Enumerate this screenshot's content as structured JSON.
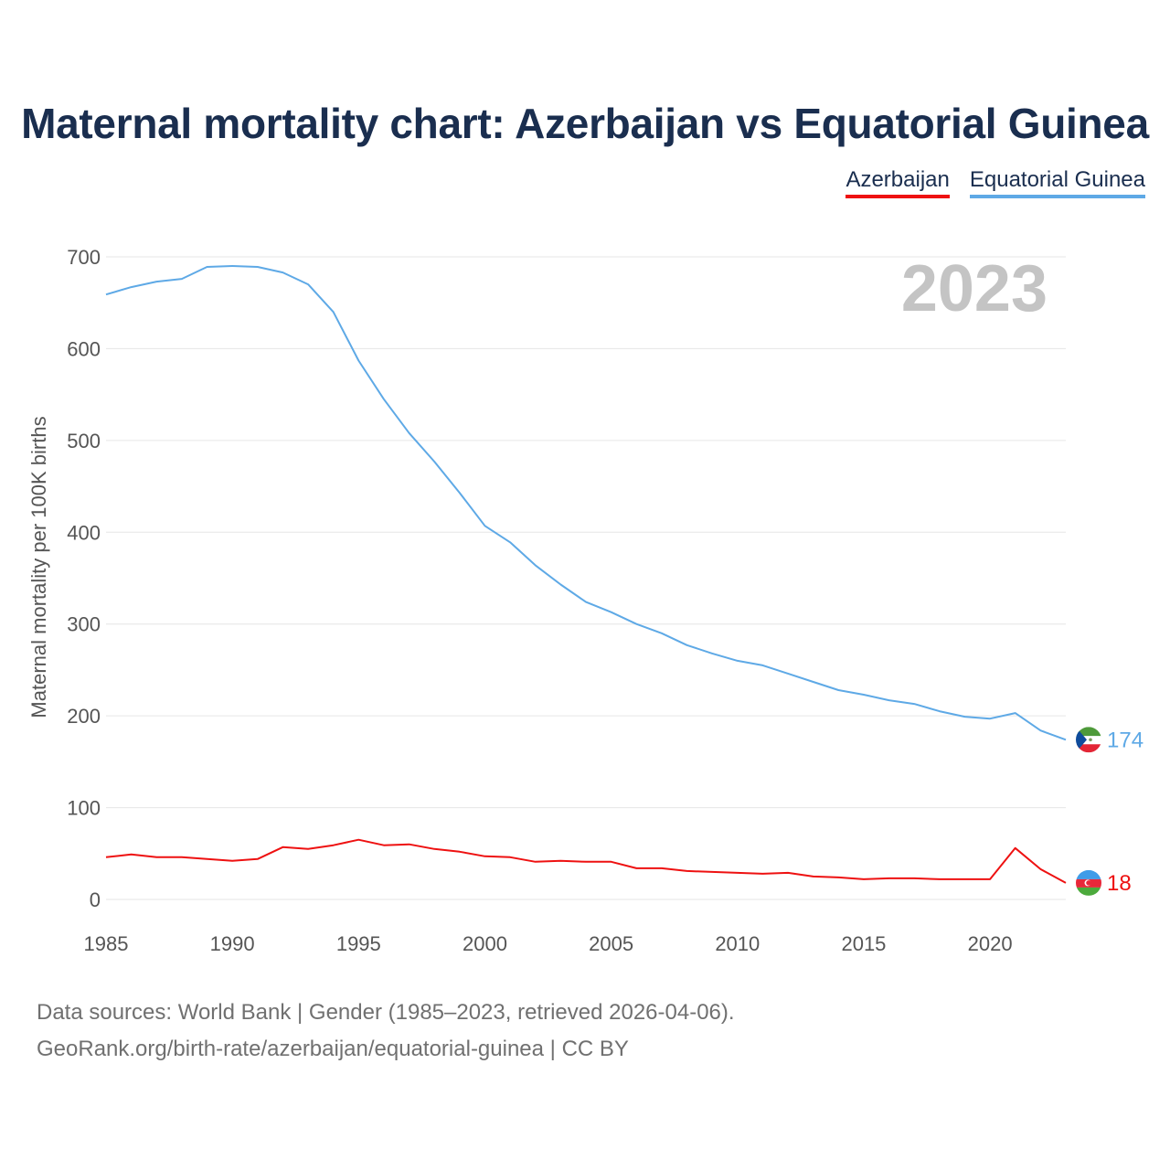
{
  "title": "Maternal mortality chart: Azerbaijan vs Equatorial Guinea",
  "legend": [
    {
      "name": "Azerbaijan",
      "color": "#ee1111"
    },
    {
      "name": "Equatorial Guinea",
      "color": "#5ea9e6"
    }
  ],
  "year_watermark": "2023",
  "source": {
    "line1": "Data sources: World Bank | Gender (1985–2023, retrieved 2026-04-06).",
    "line2": "GeoRank.org/birth-rate/azerbaijan/equatorial-guinea | CC BY"
  },
  "chart_data": {
    "type": "line",
    "title": "Maternal mortality chart: Azerbaijan vs Equatorial Guinea",
    "xlabel": "",
    "ylabel": "Maternal mortality per 100K births",
    "xlim": [
      1985,
      2023
    ],
    "ylim": [
      0,
      700
    ],
    "x_ticks": [
      "1985",
      "1990",
      "1995",
      "2000",
      "2005",
      "2010",
      "2015",
      "2020"
    ],
    "y_ticks": [
      "0",
      "100",
      "200",
      "300",
      "400",
      "500",
      "600",
      "700"
    ],
    "grid": true,
    "x": [
      1985,
      1986,
      1987,
      1988,
      1989,
      1990,
      1991,
      1992,
      1993,
      1994,
      1995,
      1996,
      1997,
      1998,
      1999,
      2000,
      2001,
      2002,
      2003,
      2004,
      2005,
      2006,
      2007,
      2008,
      2009,
      2010,
      2011,
      2012,
      2013,
      2014,
      2015,
      2016,
      2017,
      2018,
      2019,
      2020,
      2021,
      2022,
      2023
    ],
    "series": [
      {
        "name": "Azerbaijan",
        "color": "#ee1111",
        "end_label": "18",
        "flag": "azerbaijan-flag-icon",
        "values": [
          46,
          49,
          46,
          46,
          44,
          42,
          44,
          57,
          55,
          59,
          65,
          59,
          60,
          55,
          52,
          47,
          46,
          41,
          42,
          41,
          41,
          34,
          34,
          31,
          30,
          29,
          28,
          29,
          25,
          24,
          22,
          23,
          23,
          22,
          22,
          22,
          56,
          33,
          18
        ]
      },
      {
        "name": "Equatorial Guinea",
        "color": "#5ea9e6",
        "end_label": "174",
        "flag": "equatorial-guinea-flag-icon",
        "values": [
          659,
          667,
          673,
          676,
          689,
          690,
          689,
          683,
          670,
          640,
          587,
          545,
          508,
          477,
          443,
          407,
          389,
          364,
          343,
          324,
          313,
          300,
          290,
          277,
          268,
          260,
          255,
          246,
          237,
          228,
          223,
          217,
          213,
          205,
          199,
          197,
          203,
          184,
          174
        ]
      }
    ]
  }
}
